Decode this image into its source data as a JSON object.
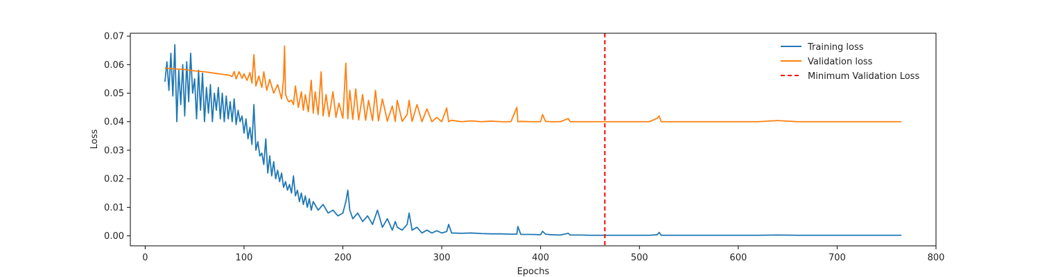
{
  "chart_data": {
    "type": "line",
    "xlabel": "Epochs",
    "ylabel": "Loss",
    "xlim": [
      -15,
      800
    ],
    "ylim": [
      -0.0035,
      0.071
    ],
    "xticks": [
      0,
      100,
      200,
      300,
      400,
      500,
      600,
      700,
      800
    ],
    "yticks": [
      0.0,
      0.01,
      0.02,
      0.03,
      0.04,
      0.05,
      0.06,
      0.07
    ],
    "ytick_labels": [
      "0.00",
      "0.01",
      "0.02",
      "0.03",
      "0.04",
      "0.05",
      "0.06",
      "0.07"
    ],
    "grid": false,
    "legend_position": "top-right",
    "series": [
      {
        "name": "Training loss",
        "color": "#1f77b4",
        "style": "solid",
        "x": [
          20,
          22,
          24,
          26,
          28,
          30,
          32,
          34,
          36,
          38,
          40,
          42,
          44,
          46,
          48,
          50,
          52,
          54,
          56,
          58,
          60,
          62,
          64,
          66,
          68,
          70,
          72,
          74,
          76,
          78,
          80,
          82,
          84,
          86,
          88,
          90,
          92,
          94,
          96,
          98,
          100,
          102,
          104,
          106,
          108,
          110,
          112,
          114,
          116,
          118,
          120,
          122,
          124,
          126,
          128,
          130,
          132,
          134,
          136,
          138,
          140,
          142,
          144,
          146,
          148,
          150,
          152,
          154,
          156,
          158,
          160,
          162,
          164,
          166,
          168,
          170,
          175,
          180,
          185,
          190,
          195,
          200,
          203,
          205,
          207,
          210,
          215,
          220,
          225,
          230,
          235,
          240,
          245,
          250,
          253,
          255,
          260,
          265,
          267,
          270,
          275,
          280,
          285,
          290,
          295,
          300,
          305,
          307,
          310,
          320,
          330,
          340,
          350,
          360,
          370,
          376,
          377,
          380,
          390,
          400,
          402,
          405,
          410,
          420,
          428,
          430,
          440,
          450,
          460,
          465,
          470,
          480,
          490,
          500,
          510,
          518,
          520,
          522,
          530,
          540,
          560,
          580,
          600,
          620,
          640,
          660,
          680,
          700,
          720,
          740,
          765
        ],
        "y": [
          0.054,
          0.061,
          0.051,
          0.064,
          0.049,
          0.067,
          0.04,
          0.058,
          0.046,
          0.06,
          0.042,
          0.061,
          0.047,
          0.064,
          0.05,
          0.055,
          0.041,
          0.058,
          0.044,
          0.057,
          0.04,
          0.052,
          0.043,
          0.053,
          0.04,
          0.05,
          0.044,
          0.052,
          0.041,
          0.05,
          0.04,
          0.049,
          0.041,
          0.047,
          0.04,
          0.048,
          0.039,
          0.044,
          0.04,
          0.042,
          0.036,
          0.041,
          0.034,
          0.038,
          0.032,
          0.046,
          0.03,
          0.033,
          0.028,
          0.029,
          0.025,
          0.034,
          0.022,
          0.028,
          0.021,
          0.026,
          0.02,
          0.023,
          0.019,
          0.022,
          0.017,
          0.019,
          0.016,
          0.018,
          0.015,
          0.021,
          0.014,
          0.016,
          0.012,
          0.015,
          0.011,
          0.014,
          0.01,
          0.013,
          0.009,
          0.012,
          0.009,
          0.011,
          0.008,
          0.009,
          0.007,
          0.008,
          0.012,
          0.016,
          0.009,
          0.006,
          0.008,
          0.005,
          0.007,
          0.004,
          0.009,
          0.003,
          0.006,
          0.002,
          0.005,
          0.003,
          0.002,
          0.004,
          0.008,
          0.002,
          0.003,
          0.001,
          0.002,
          0.001,
          0.0018,
          0.001,
          0.0015,
          0.004,
          0.001,
          0.0009,
          0.001,
          0.0008,
          0.0007,
          0.0007,
          0.0006,
          0.0006,
          0.0033,
          0.0005,
          0.0005,
          0.0004,
          0.0016,
          0.0006,
          0.0004,
          0.0003,
          0.0009,
          0.0003,
          0.0003,
          0.0002,
          0.0002,
          0.0002,
          0.0002,
          0.0002,
          0.0002,
          0.0002,
          0.0002,
          0.0004,
          0.0012,
          0.0002,
          0.0002,
          0.0002,
          0.0002,
          0.0002,
          0.0002,
          0.0002,
          0.0003,
          0.0002,
          0.0002,
          0.0002,
          0.0002,
          0.0002,
          0.0002
        ]
      },
      {
        "name": "Validation loss",
        "color": "#ff7f0e",
        "style": "solid",
        "x": [
          20,
          30,
          40,
          50,
          60,
          70,
          80,
          85,
          88,
          90,
          92,
          95,
          98,
          100,
          103,
          106,
          108,
          110,
          112,
          115,
          118,
          120,
          123,
          126,
          130,
          134,
          138,
          140,
          141,
          142,
          145,
          148,
          150,
          152,
          155,
          158,
          160,
          162,
          165,
          168,
          170,
          172,
          175,
          178,
          180,
          183,
          186,
          190,
          193,
          196,
          200,
          203,
          205,
          207,
          210,
          213,
          216,
          220,
          223,
          226,
          230,
          233,
          236,
          240,
          245,
          250,
          253,
          255,
          260,
          265,
          267,
          270,
          275,
          280,
          285,
          290,
          295,
          300,
          305,
          307,
          310,
          320,
          330,
          340,
          350,
          360,
          370,
          376,
          377,
          380,
          390,
          400,
          402,
          405,
          410,
          420,
          428,
          430,
          440,
          450,
          460,
          465,
          470,
          480,
          490,
          500,
          510,
          518,
          520,
          522,
          530,
          540,
          560,
          580,
          600,
          620,
          640,
          660,
          680,
          700,
          720,
          740,
          765
        ],
        "y": [
          0.0588,
          0.0585,
          0.0583,
          0.0578,
          0.0575,
          0.057,
          0.0565,
          0.0563,
          0.0558,
          0.0576,
          0.055,
          0.0575,
          0.0552,
          0.0568,
          0.0545,
          0.0572,
          0.0535,
          0.0635,
          0.0525,
          0.056,
          0.052,
          0.0575,
          0.051,
          0.0548,
          0.05,
          0.053,
          0.048,
          0.055,
          0.0665,
          0.0495,
          0.047,
          0.0475,
          0.046,
          0.0525,
          0.045,
          0.0505,
          0.044,
          0.0495,
          0.0435,
          0.0545,
          0.043,
          0.0505,
          0.0425,
          0.0575,
          0.042,
          0.0495,
          0.0418,
          0.0505,
          0.0415,
          0.0465,
          0.0412,
          0.0605,
          0.041,
          0.051,
          0.0408,
          0.0515,
          0.0406,
          0.0495,
          0.0405,
          0.0475,
          0.0404,
          0.051,
          0.0403,
          0.048,
          0.0402,
          0.0455,
          0.0401,
          0.0475,
          0.0401,
          0.0425,
          0.0475,
          0.0401,
          0.046,
          0.04,
          0.0445,
          0.04,
          0.0415,
          0.04,
          0.0448,
          0.04,
          0.0405,
          0.04,
          0.0403,
          0.04,
          0.0402,
          0.04,
          0.04,
          0.045,
          0.04,
          0.0401,
          0.04,
          0.04,
          0.0425,
          0.0401,
          0.04,
          0.04,
          0.0411,
          0.04,
          0.04,
          0.04,
          0.04,
          0.04,
          0.04,
          0.04,
          0.04,
          0.04,
          0.04,
          0.0412,
          0.042,
          0.04,
          0.04,
          0.04,
          0.04,
          0.04,
          0.04,
          0.04,
          0.0404,
          0.04,
          0.04,
          0.04,
          0.04,
          0.04,
          0.04
        ]
      },
      {
        "name": "Minimum Validation Loss",
        "color": "#ff0000",
        "style": "dashed",
        "vline_x": 465
      }
    ]
  }
}
